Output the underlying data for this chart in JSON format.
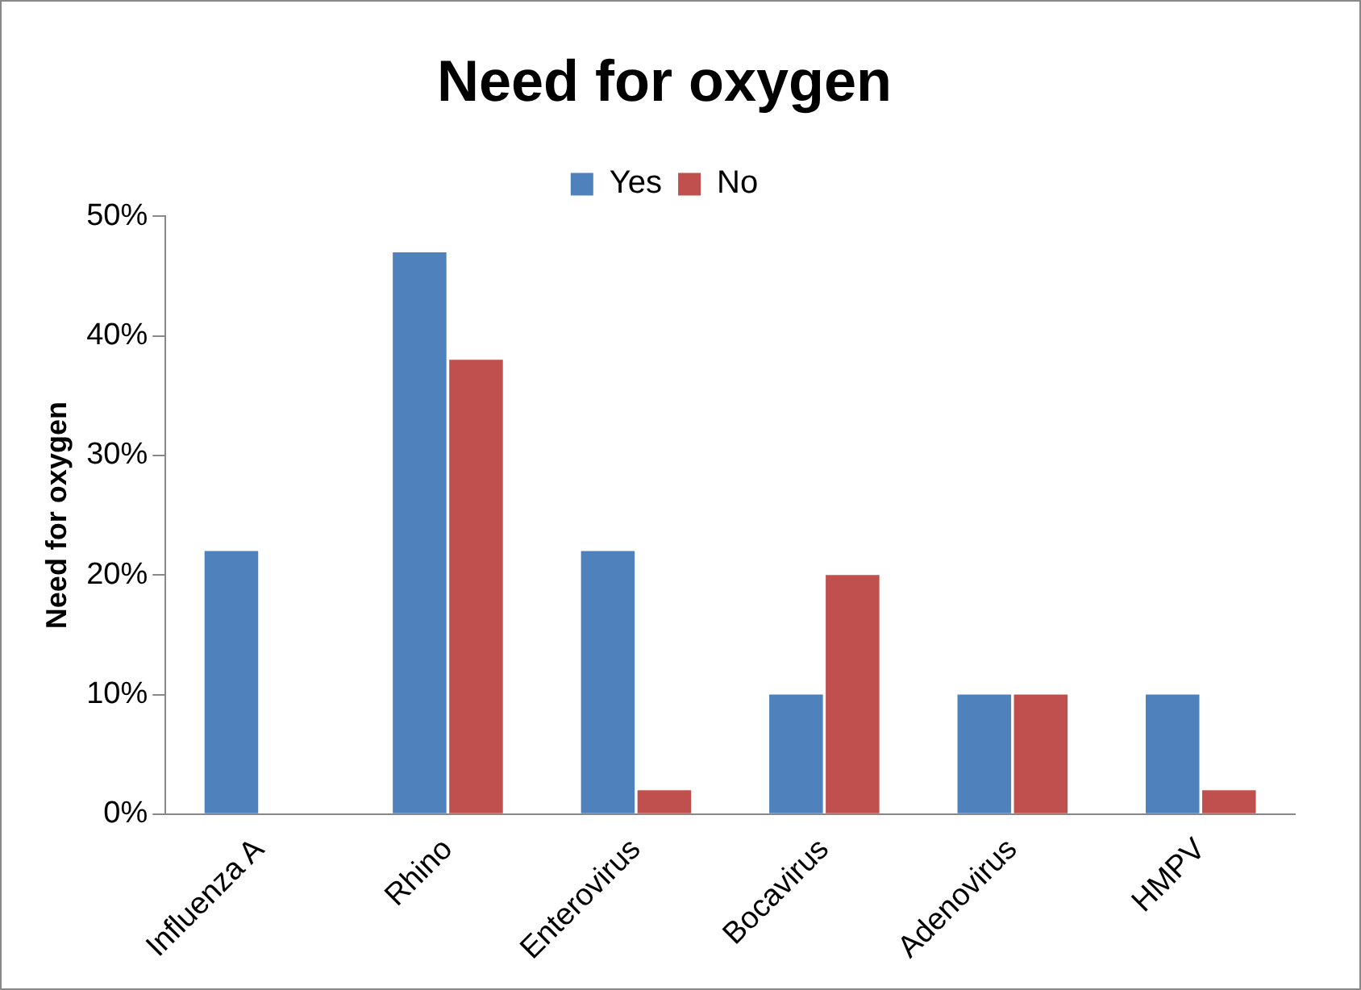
{
  "chart_data": {
    "type": "bar",
    "title": "Need for oxygen",
    "ylabel": "Need for oxygen",
    "categories": [
      "Influenza A",
      "Rhino",
      "Enterovirus",
      "Bocavirus",
      "Adenovirus",
      "HMPV"
    ],
    "series": [
      {
        "name": "Yes",
        "color": "#4f81bd",
        "values": [
          22,
          47,
          22,
          10,
          10,
          10
        ]
      },
      {
        "name": "No",
        "color": "#c0504d",
        "values": [
          0,
          38,
          2,
          20,
          10,
          2
        ]
      }
    ],
    "ylim": [
      0,
      50
    ],
    "yticks": [
      {
        "value": 0,
        "label": "0%"
      },
      {
        "value": 10,
        "label": "10%"
      },
      {
        "value": 20,
        "label": "20%"
      },
      {
        "value": 30,
        "label": "30%"
      },
      {
        "value": 40,
        "label": "40%"
      },
      {
        "value": 50,
        "label": "50%"
      }
    ],
    "grid": false,
    "legend": "top"
  }
}
